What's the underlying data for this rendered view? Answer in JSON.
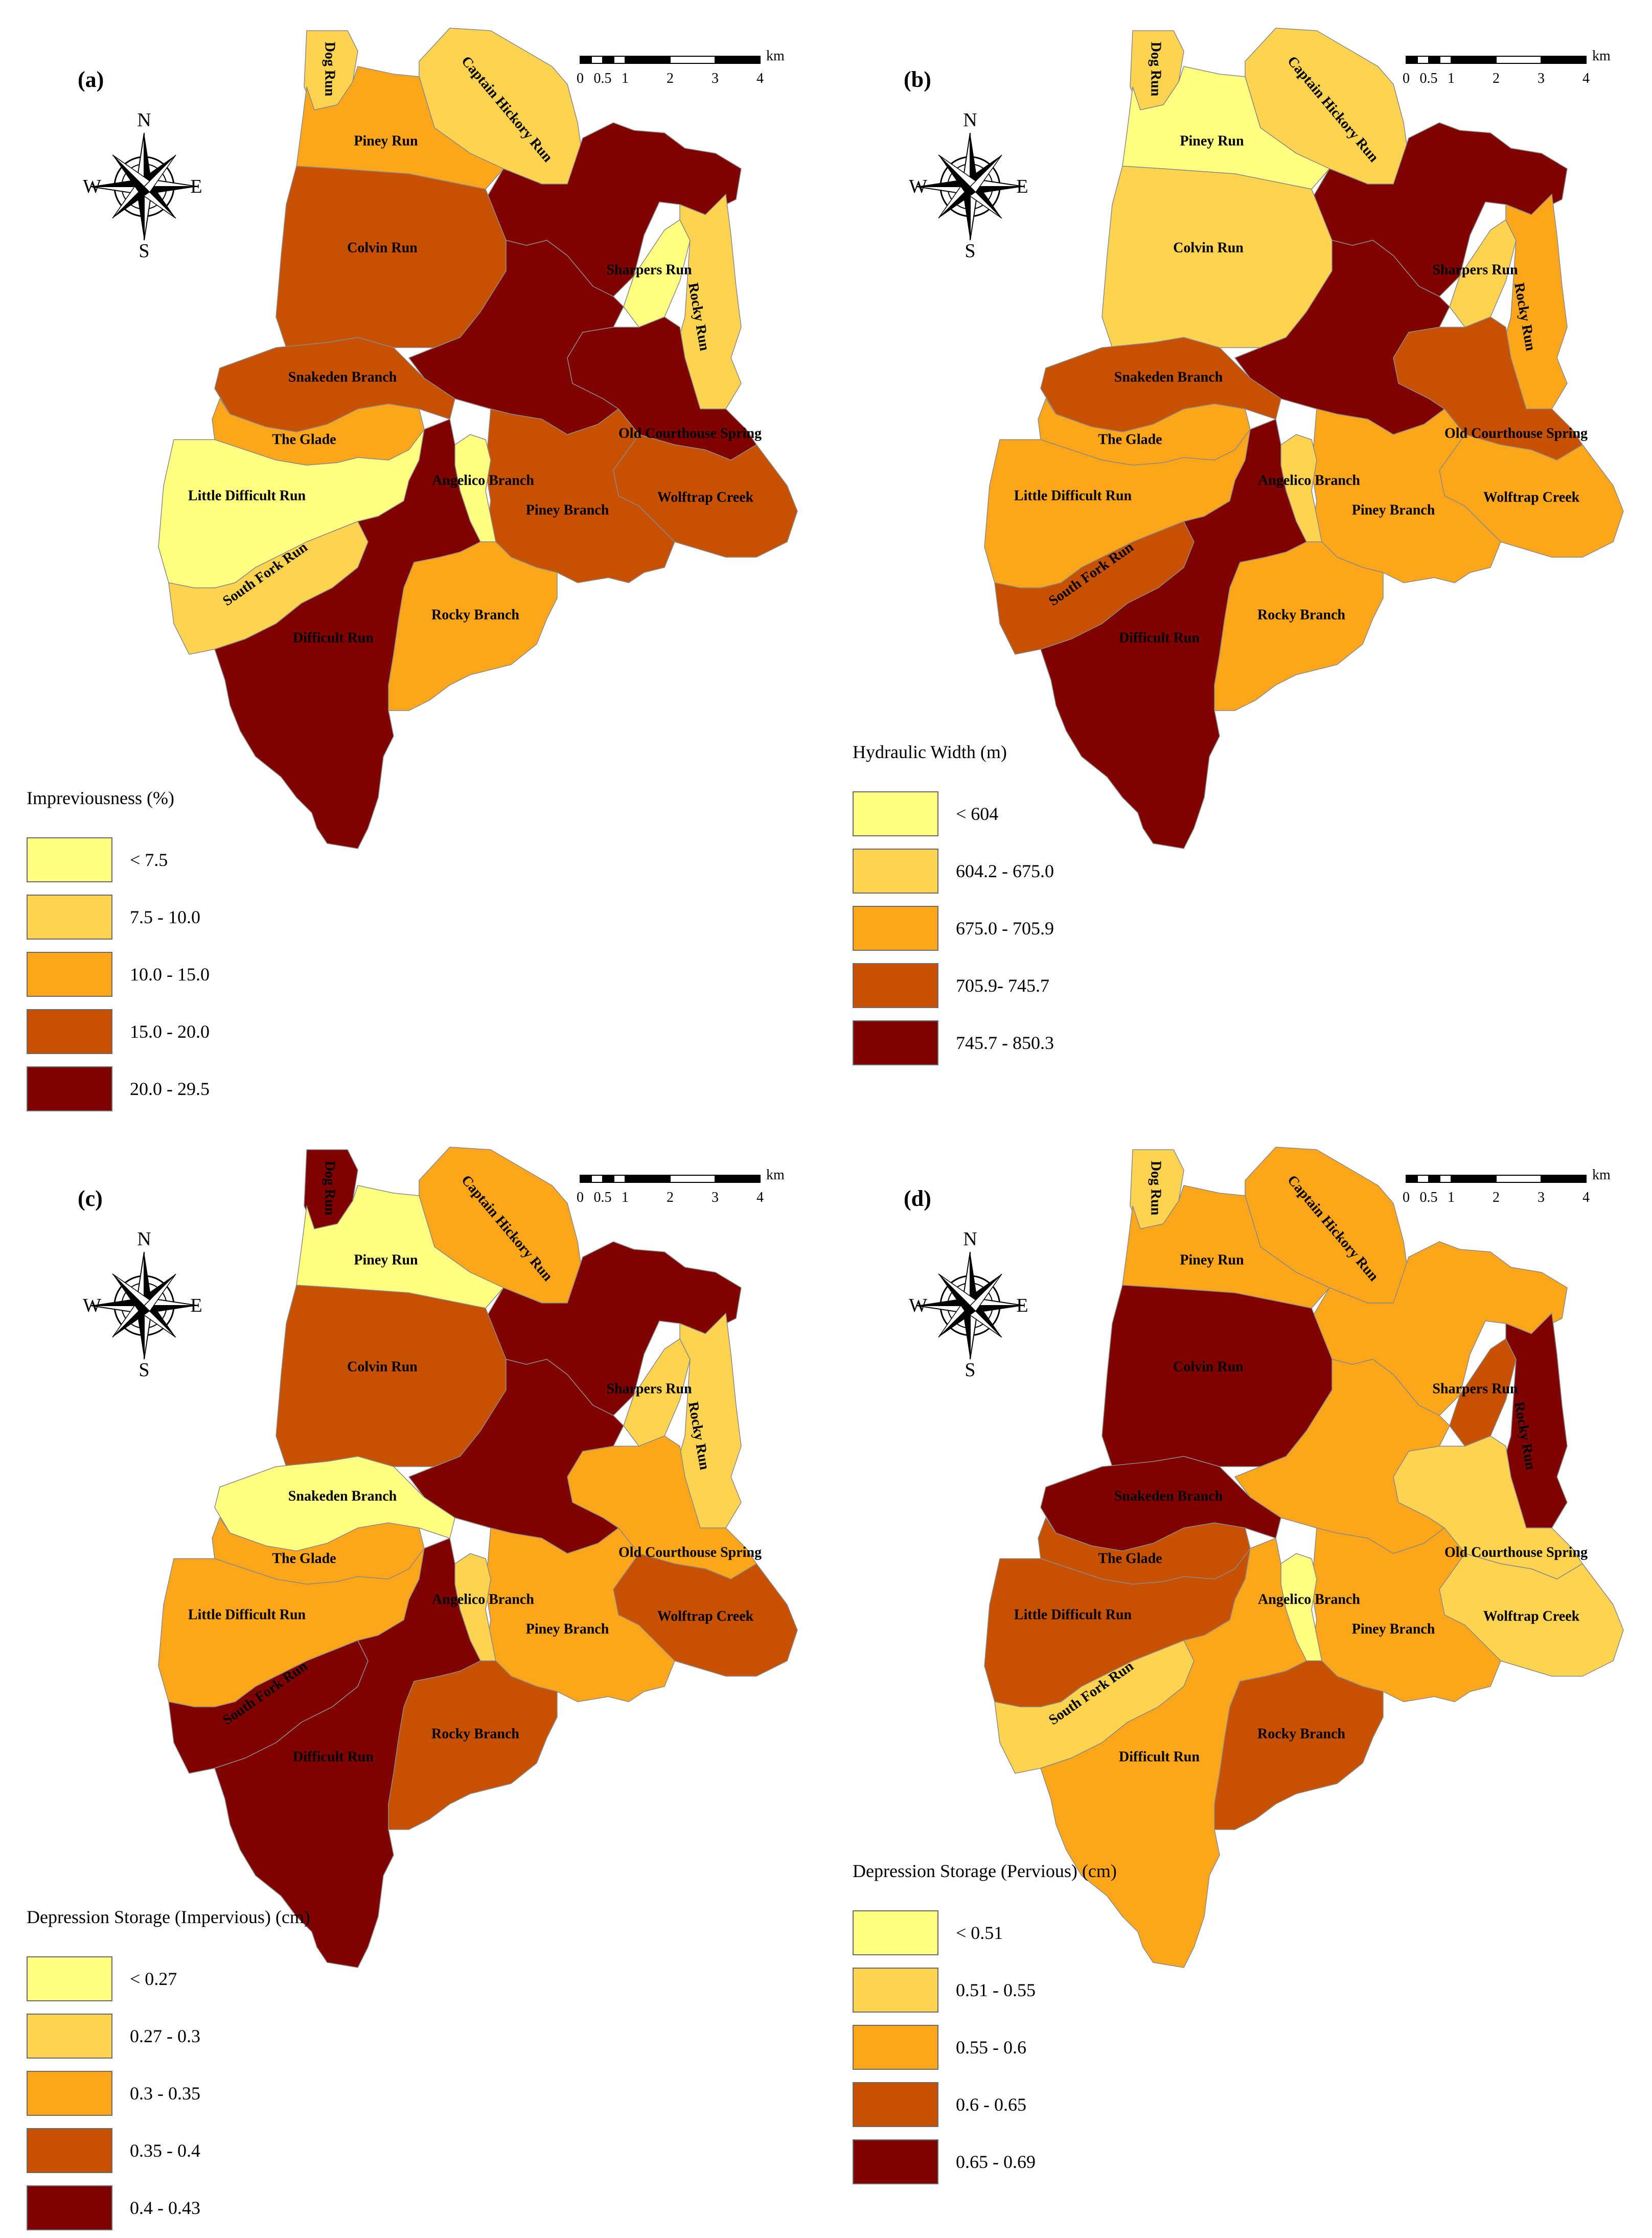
{
  "figure": {
    "colors": {
      "class1": "#ffff80",
      "class2": "#fed34f",
      "class3": "#fda619",
      "class4": "#c75100",
      "class5": "#7f0100",
      "outline": "#8a8a8a"
    },
    "north_arrow": {
      "n": "N",
      "s": "S",
      "e": "E",
      "w": "W",
      "icon": "compass-rose-icon"
    },
    "scale_bar": {
      "ticks": [
        "0",
        "0.5",
        "1",
        "2",
        "3",
        "4"
      ],
      "unit": "km"
    },
    "subbasins": {
      "dog_run": "Dog Run",
      "captain_hickory_run": "Captain Hickory Run",
      "piney_run": "Piney Run",
      "colvin_run": "Colvin Run",
      "sharpers_run": "Sharpers Run",
      "rocky_run": "Rocky Run",
      "snakeden_branch": "Snakeden Branch",
      "old_courthouse_spring": "Old Courthouse Spring",
      "the_glade": "The Glade",
      "angelico_branch": "Angelico Branch",
      "little_difficult_run": "Little Difficult Run",
      "piney_branch": "Piney Branch",
      "wolftrap_creek": "Wolftrap Creek",
      "south_fork_run": "South Fork Run",
      "difficult_run": "Difficult Run",
      "rocky_branch": "Rocky Branch"
    }
  },
  "panels": [
    {
      "label": "(a)",
      "legend_title": "Impreviousness (%)",
      "legend": [
        "< 7.5",
        "7.5 - 10.0",
        "10.0 - 15.0",
        "15.0 - 20.0",
        "20.0 - 29.5"
      ],
      "classes": {
        "dog_run": 2,
        "captain_hickory_run": 2,
        "piney_run": 3,
        "colvin_run": 4,
        "upper_main": 5,
        "sharpers_run": 1,
        "rocky_run": 2,
        "snakeden_branch": 4,
        "central_main": 5,
        "old_courthouse_spring": 5,
        "wolftrap_creek": 4,
        "the_glade": 3,
        "angelico_branch": 1,
        "little_difficult_run": 1,
        "piney_branch": 4,
        "south_fork_run": 2,
        "difficult_run": 5,
        "rocky_branch": 3
      }
    },
    {
      "label": "(b)",
      "legend_title": "Hydraulic Width (m)",
      "legend": [
        "< 604",
        "604.2 - 675.0",
        "675.0 - 705.9",
        "705.9- 745.7",
        "745.7 - 850.3"
      ],
      "classes": {
        "dog_run": 2,
        "captain_hickory_run": 2,
        "piney_run": 1,
        "colvin_run": 2,
        "upper_main": 5,
        "sharpers_run": 2,
        "rocky_run": 3,
        "snakeden_branch": 4,
        "central_main": 5,
        "old_courthouse_spring": 4,
        "wolftrap_creek": 3,
        "the_glade": 3,
        "angelico_branch": 2,
        "little_difficult_run": 3,
        "piney_branch": 3,
        "south_fork_run": 4,
        "difficult_run": 5,
        "rocky_branch": 3
      }
    },
    {
      "label": "(c)",
      "legend_title": "Depression Storage (Impervious) (cm)",
      "legend": [
        "< 0.27",
        "0.27 - 0.3",
        "0.3 - 0.35",
        "0.35 - 0.4",
        "0.4 - 0.43"
      ],
      "classes": {
        "dog_run": 5,
        "captain_hickory_run": 3,
        "piney_run": 1,
        "colvin_run": 4,
        "upper_main": 5,
        "sharpers_run": 2,
        "rocky_run": 2,
        "snakeden_branch": 1,
        "central_main": 5,
        "old_courthouse_spring": 3,
        "wolftrap_creek": 4,
        "the_glade": 3,
        "angelico_branch": 2,
        "little_difficult_run": 3,
        "piney_branch": 3,
        "south_fork_run": 5,
        "difficult_run": 5,
        "rocky_branch": 4
      }
    },
    {
      "label": "(d)",
      "legend_title": "Depression Storage (Pervious) (cm)",
      "legend": [
        "< 0.51",
        "0.51 - 0.55",
        "0.55 - 0.6",
        "0.6 - 0.65",
        "0.65 - 0.69"
      ],
      "classes": {
        "dog_run": 2,
        "captain_hickory_run": 3,
        "piney_run": 3,
        "colvin_run": 5,
        "upper_main": 3,
        "sharpers_run": 4,
        "rocky_run": 5,
        "snakeden_branch": 5,
        "central_main": 3,
        "old_courthouse_spring": 2,
        "wolftrap_creek": 2,
        "the_glade": 4,
        "angelico_branch": 1,
        "little_difficult_run": 4,
        "piney_branch": 3,
        "south_fork_run": 2,
        "difficult_run": 3,
        "rocky_branch": 4
      }
    }
  ]
}
